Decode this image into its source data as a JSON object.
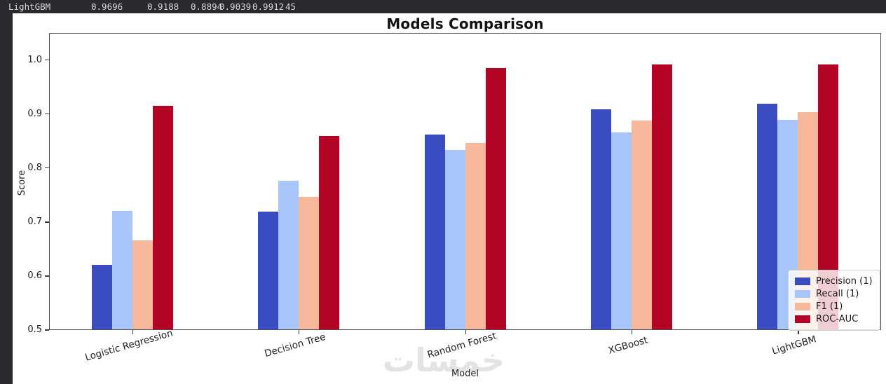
{
  "colors": {
    "app_background": "#2a2a2c",
    "figure_background": "#ffffff"
  },
  "terminal": {
    "row": {
      "model": "LightGBM",
      "values": [
        "0.9696",
        "0.9188",
        "0.8894",
        "0.9039",
        "0.9912",
        "45"
      ]
    }
  },
  "watermark_text": "خمسات",
  "chart_data": {
    "type": "bar",
    "title": "Models Comparison",
    "xlabel": "Model",
    "ylabel": "Score",
    "ylim": [
      0.5,
      1.05
    ],
    "yticks": [
      0.5,
      0.6,
      0.7,
      0.8,
      0.9,
      1.0
    ],
    "grid": false,
    "legend_position": "lower right",
    "categories": [
      "Logistic Regression",
      "Decision Tree",
      "Random Forest",
      "XGBoost",
      "LightGBM"
    ],
    "series": [
      {
        "name": "Precision (1)",
        "color": "#3b4cc0",
        "values": [
          0.62,
          0.719,
          0.862,
          0.909,
          0.9188
        ]
      },
      {
        "name": "Recall (1)",
        "color": "#a7c5f8",
        "values": [
          0.72,
          0.776,
          0.833,
          0.866,
          0.8894
        ]
      },
      {
        "name": "F1 (1)",
        "color": "#f6b79a",
        "values": [
          0.666,
          0.747,
          0.846,
          0.888,
          0.9039
        ]
      },
      {
        "name": "ROC-AUC",
        "color": "#b40426",
        "values": [
          0.915,
          0.859,
          0.985,
          0.991,
          0.9912
        ]
      }
    ]
  }
}
